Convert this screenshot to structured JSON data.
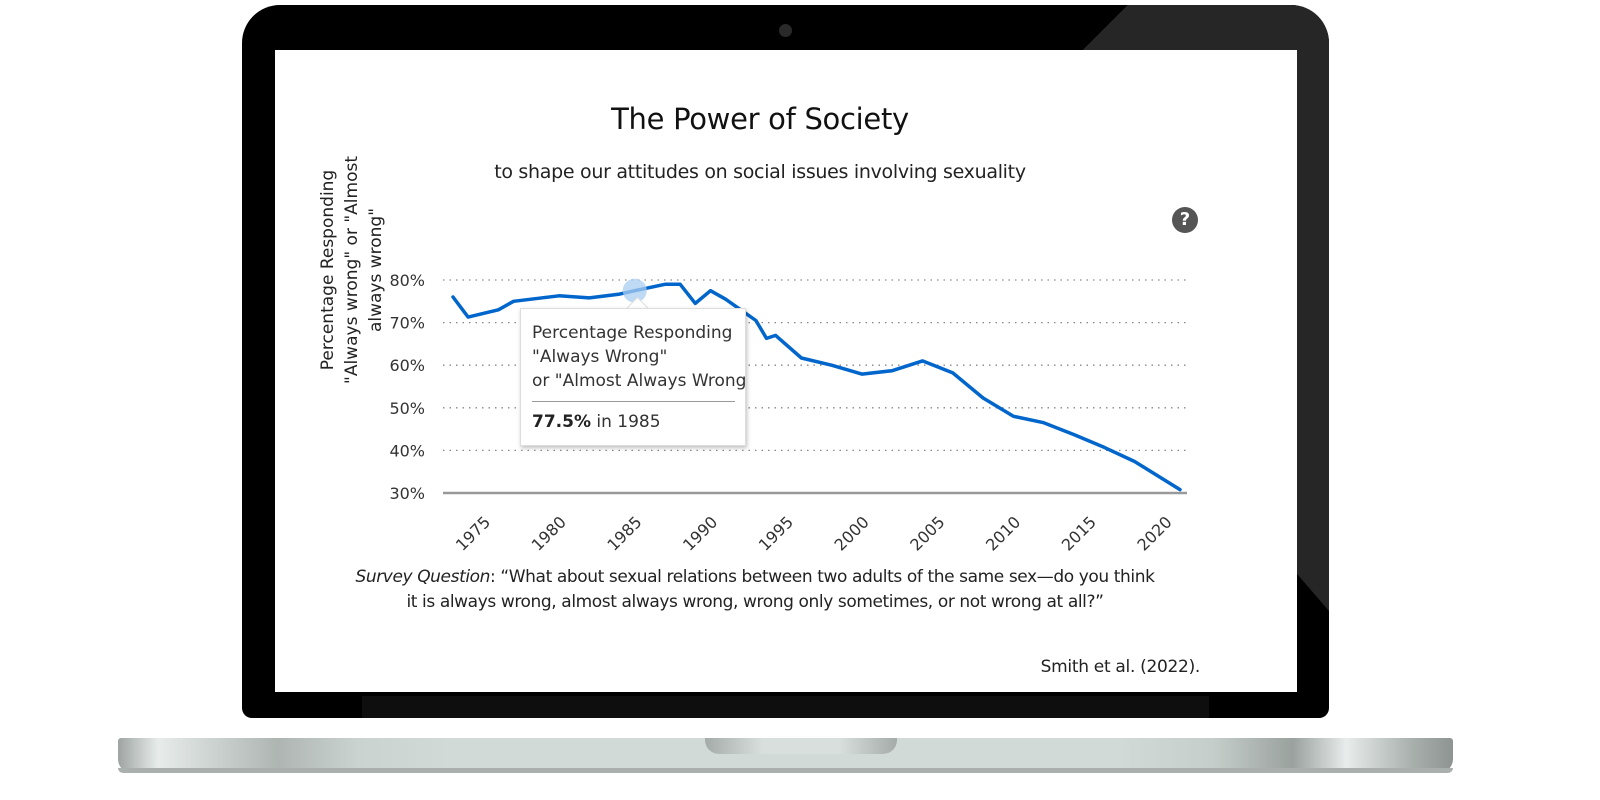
{
  "page": {
    "title": "The Power of Society",
    "subtitle": "to shape our attitudes on social issues involving sexuality",
    "help_icon": "question-circle-icon",
    "help_glyph": "?",
    "survey_label": "Survey Question",
    "survey_text": ": “What about sexual relations between two adults of the same sex—do you think it is always wrong, almost always wrong, wrong only sometimes, or not wrong at all?”",
    "citation": "Smith et al. (2022)."
  },
  "tooltip": {
    "line1": "Percentage Responding",
    "line2": "\"Always Wrong\"",
    "line3": "or \"Almost Always Wrong",
    "value": "77.5%",
    "suffix": " in 1985"
  },
  "colors": {
    "line": "#0066cc",
    "highlight": "#a9cdf0",
    "grid": "#888888",
    "axis": "#999999"
  },
  "chart_data": {
    "type": "line",
    "title": "The Power of Society",
    "subtitle": "to shape our attitudes on social issues involving sexuality",
    "xlabel": "",
    "ylabel": "Percentage Responding \"Always wrong\" or \"Almost always wrong\"",
    "ylim": [
      30,
      80
    ],
    "xlim": [
      1973,
      2021
    ],
    "yticks": [
      "30%",
      "40%",
      "50%",
      "60%",
      "70%",
      "80%"
    ],
    "ytick_values": [
      30,
      40,
      50,
      60,
      70,
      80
    ],
    "xticks": [
      "1975",
      "1980",
      "1985",
      "1990",
      "1995",
      "2000",
      "2005",
      "2010",
      "2015",
      "2020"
    ],
    "xtick_values": [
      1975,
      1980,
      1985,
      1990,
      1995,
      2000,
      2005,
      2010,
      2015,
      2020
    ],
    "grid": "horizontal dotted",
    "highlighted_point": {
      "x": 1985,
      "y": 77.5
    },
    "series": [
      {
        "name": "Percentage Responding \"Always Wrong\" or \"Almost Always Wrong\"",
        "x": [
          1973,
          1974,
          1976,
          1977,
          1980,
          1982,
          1984,
          1985,
          1987,
          1988,
          1989,
          1990,
          1991,
          1993,
          1993.7,
          1994.3,
          1996,
          1998,
          2000,
          2002,
          2004,
          2006,
          2008,
          2010,
          2012,
          2014,
          2016,
          2018,
          2021
        ],
        "values": [
          76.0,
          71.3,
          73.0,
          75.0,
          76.3,
          75.8,
          76.7,
          77.5,
          79.0,
          79.0,
          74.5,
          77.5,
          75.5,
          70.5,
          66.3,
          67.0,
          61.7,
          60.0,
          57.9,
          58.7,
          61.0,
          58.2,
          52.3,
          48.0,
          46.5,
          43.7,
          40.7,
          37.4,
          30.8
        ]
      }
    ]
  }
}
